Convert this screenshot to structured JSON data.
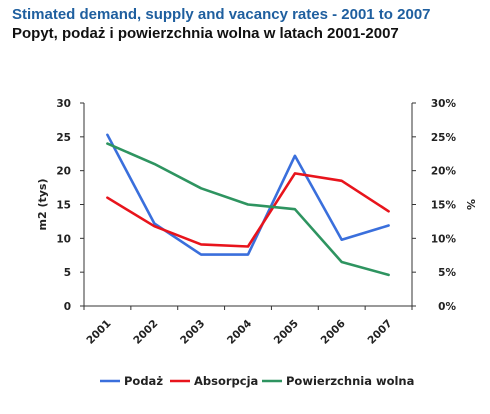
{
  "chart_data": {
    "type": "line",
    "title": "Stimated demand, supply and vacancy rates - 2001 to 2007",
    "subtitle": "Popyt, podaż i powierzchnia wolna w latach 2001-2007",
    "ylabel": "m2 (tys)",
    "ylabel_right": "%",
    "categories": [
      "2001",
      "2002",
      "2003",
      "2004",
      "2005",
      "2006",
      "2007"
    ],
    "ylim": [
      0,
      30
    ],
    "ylim_right": [
      0,
      30
    ],
    "yticks": [
      "0",
      "5",
      "10",
      "15",
      "20",
      "25",
      "30"
    ],
    "yticks_right": [
      "0%",
      "5%",
      "10%",
      "15%",
      "20%",
      "25%",
      "30%"
    ],
    "grid": false,
    "legend_position": "bottom",
    "series": [
      {
        "name": "Podaż",
        "color": "#3a6fdc",
        "axis": "left",
        "values": [
          25.3,
          12.2,
          7.6,
          7.6,
          22.2,
          9.8,
          11.9
        ]
      },
      {
        "name": "Absorpcja",
        "color": "#e8141c",
        "axis": "left",
        "values": [
          16.0,
          11.8,
          9.1,
          8.8,
          19.6,
          18.5,
          14.0
        ]
      },
      {
        "name": "Powierzchnia wolna",
        "color": "#2e9460",
        "axis": "right",
        "values": [
          24.0,
          21.0,
          17.4,
          15.0,
          14.3,
          6.5,
          4.6
        ]
      }
    ]
  }
}
